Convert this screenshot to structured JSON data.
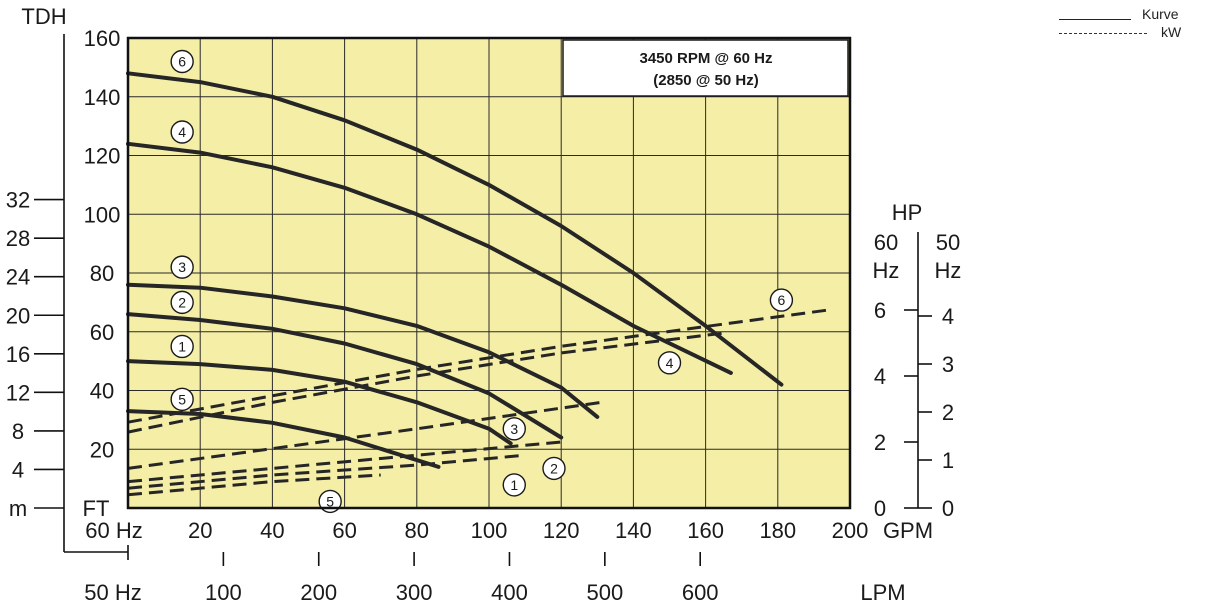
{
  "chart_data": {
    "type": "line",
    "title": "3450 RPM @ 60 Hz",
    "subtitle": "(2850 @ 50 Hz)",
    "x_axis": {
      "label_60hz": "60 Hz",
      "unit_gpm": "GPM",
      "ticks_gpm": [
        "20",
        "40",
        "60",
        "80",
        "100",
        "120",
        "140",
        "160",
        "180",
        "200"
      ],
      "range": [
        0,
        200
      ],
      "label_50hz": "50 Hz",
      "unit_lpm": "LPM",
      "ticks_lpm": [
        "100",
        "200",
        "300",
        "400",
        "500",
        "600"
      ]
    },
    "y_left": {
      "label_ft": "FT",
      "ticks_ft": [
        "20",
        "40",
        "60",
        "80",
        "100",
        "120",
        "140",
        "160"
      ],
      "range": [
        0,
        160
      ],
      "label_tdh": "TDH",
      "label_m": "m",
      "ticks_m": [
        "4",
        "8",
        "12",
        "16",
        "20",
        "24",
        "28",
        "32"
      ]
    },
    "y_right": {
      "label_hp": "HP",
      "label_60": "60",
      "label_hz1": "Hz",
      "label_50": "50",
      "label_hz2": "Hz",
      "ticks_60hz": [
        "0",
        "2",
        "4",
        "6"
      ],
      "ticks_50hz": [
        "0",
        "1",
        "2",
        "3",
        "4"
      ]
    },
    "grid": true,
    "head_curves": [
      {
        "label": "6",
        "x": [
          0,
          20,
          40,
          60,
          80,
          100,
          120,
          140,
          160,
          181
        ],
        "y": [
          148,
          145,
          140,
          132,
          122,
          110,
          96,
          80,
          62,
          42
        ]
      },
      {
        "label": "4",
        "x": [
          0,
          20,
          40,
          60,
          80,
          100,
          120,
          140,
          167
        ],
        "y": [
          124,
          121,
          116,
          109,
          100,
          89,
          76,
          62,
          46
        ]
      },
      {
        "label": "3",
        "x": [
          0,
          20,
          40,
          60,
          80,
          100,
          120,
          130
        ],
        "y": [
          76,
          75,
          72,
          68,
          62,
          53,
          41,
          31
        ]
      },
      {
        "label": "2",
        "x": [
          0,
          20,
          40,
          60,
          80,
          100,
          120
        ],
        "y": [
          66,
          64,
          61,
          56,
          49,
          39,
          24
        ]
      },
      {
        "label": "1",
        "x": [
          0,
          20,
          40,
          60,
          80,
          100,
          106
        ],
        "y": [
          50,
          49,
          47,
          43,
          36,
          27,
          22
        ]
      },
      {
        "label": "5",
        "x": [
          0,
          20,
          40,
          60,
          86
        ],
        "y": [
          33,
          32,
          29,
          24,
          14
        ]
      }
    ],
    "power_curves": [
      {
        "label": "6",
        "x": [
          0,
          40,
          80,
          120,
          160,
          194
        ],
        "hp": [
          2.6,
          3.4,
          4.2,
          4.9,
          5.5,
          6.0
        ]
      },
      {
        "label": "4",
        "x": [
          0,
          40,
          80,
          120,
          165
        ],
        "hp": [
          2.3,
          3.2,
          4.0,
          4.7,
          5.3
        ]
      },
      {
        "label": "3",
        "x": [
          0,
          40,
          80,
          131
        ],
        "hp": [
          1.2,
          1.8,
          2.4,
          3.2
        ]
      },
      {
        "label": "2",
        "x": [
          0,
          40,
          80,
          120
        ],
        "hp": [
          0.8,
          1.2,
          1.6,
          2.0
        ]
      },
      {
        "label": "1",
        "x": [
          0,
          40,
          80,
          110
        ],
        "hp": [
          0.6,
          1.0,
          1.3,
          1.6
        ]
      },
      {
        "label": "5",
        "x": [
          0,
          40,
          70
        ],
        "hp": [
          0.4,
          0.8,
          1.0
        ]
      }
    ],
    "head_label_pos": [
      {
        "label": "6",
        "x": 15,
        "y": 152
      },
      {
        "label": "4",
        "x": 15,
        "y": 128
      },
      {
        "label": "3",
        "x": 15,
        "y": 82
      },
      {
        "label": "2",
        "x": 15,
        "y": 70
      },
      {
        "label": "1",
        "x": 15,
        "y": 55
      },
      {
        "label": "5",
        "x": 15,
        "y": 37
      }
    ],
    "power_label_pos": [
      {
        "label": "6",
        "x": 181,
        "hp": 6.3
      },
      {
        "label": "4",
        "x": 150,
        "hp": 4.4
      },
      {
        "label": "3",
        "x": 107,
        "hp": 2.4
      },
      {
        "label": "2",
        "x": 118,
        "hp": 1.2
      },
      {
        "label": "1",
        "x": 107,
        "hp": 0.7
      },
      {
        "label": "5",
        "x": 56,
        "hp": 0.2
      }
    ],
    "colors": {
      "background": "#f5eea6",
      "grid": "#2a2a2a",
      "curve": "#262626",
      "frame": "#111111"
    }
  },
  "legend": {
    "solid_label": "Kurve",
    "dashed_label": "kW"
  }
}
